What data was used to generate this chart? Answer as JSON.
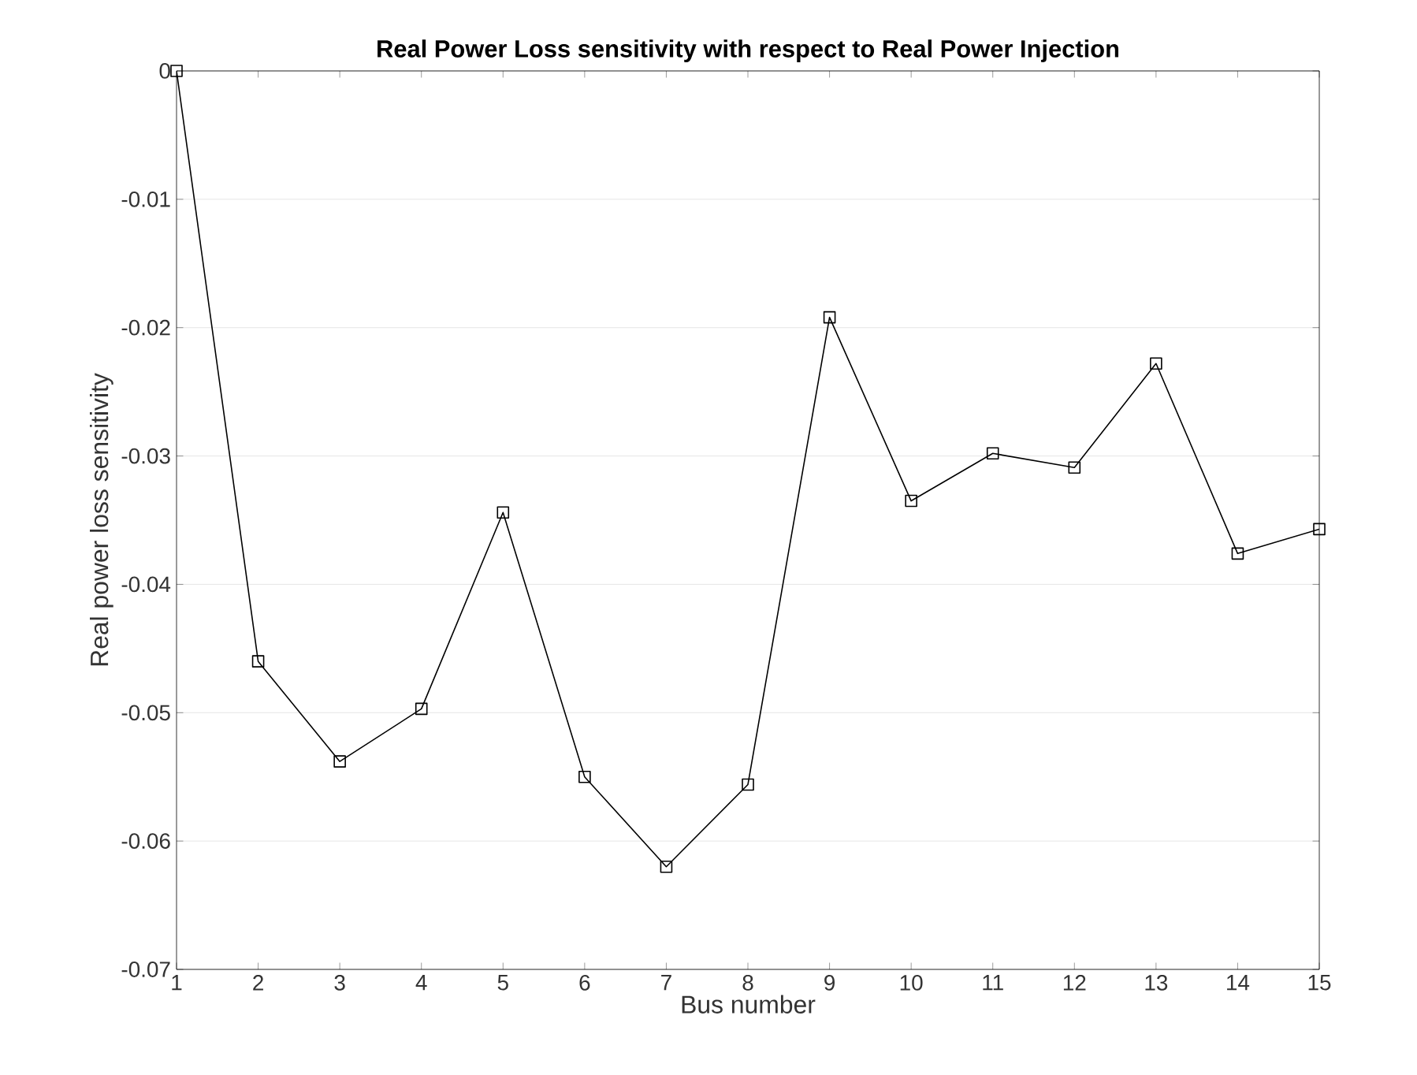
{
  "chart_data": {
    "type": "line",
    "title": "Real Power Loss sensitivity with respect to Real Power Injection",
    "xlabel": "Bus number",
    "ylabel": "Real power loss sensitivity",
    "x": [
      1,
      2,
      3,
      4,
      5,
      6,
      7,
      8,
      9,
      10,
      11,
      12,
      13,
      14,
      15
    ],
    "values": [
      0,
      -0.046,
      -0.0538,
      -0.0497,
      -0.0344,
      -0.055,
      -0.062,
      -0.0556,
      -0.0192,
      -0.0335,
      -0.0298,
      -0.0309,
      -0.0228,
      -0.0376,
      -0.0357
    ],
    "color": "#000000",
    "marker": "square",
    "line_style": "solid",
    "grid": "y",
    "xlim": [
      1,
      15
    ],
    "xticks": [
      1,
      2,
      3,
      4,
      5,
      6,
      7,
      8,
      9,
      10,
      11,
      12,
      13,
      14,
      15
    ],
    "ylim": [
      -0.07,
      0
    ],
    "yticks": [
      -0.07,
      -0.06,
      -0.05,
      -0.04,
      -0.03,
      -0.02,
      -0.01,
      0
    ]
  }
}
